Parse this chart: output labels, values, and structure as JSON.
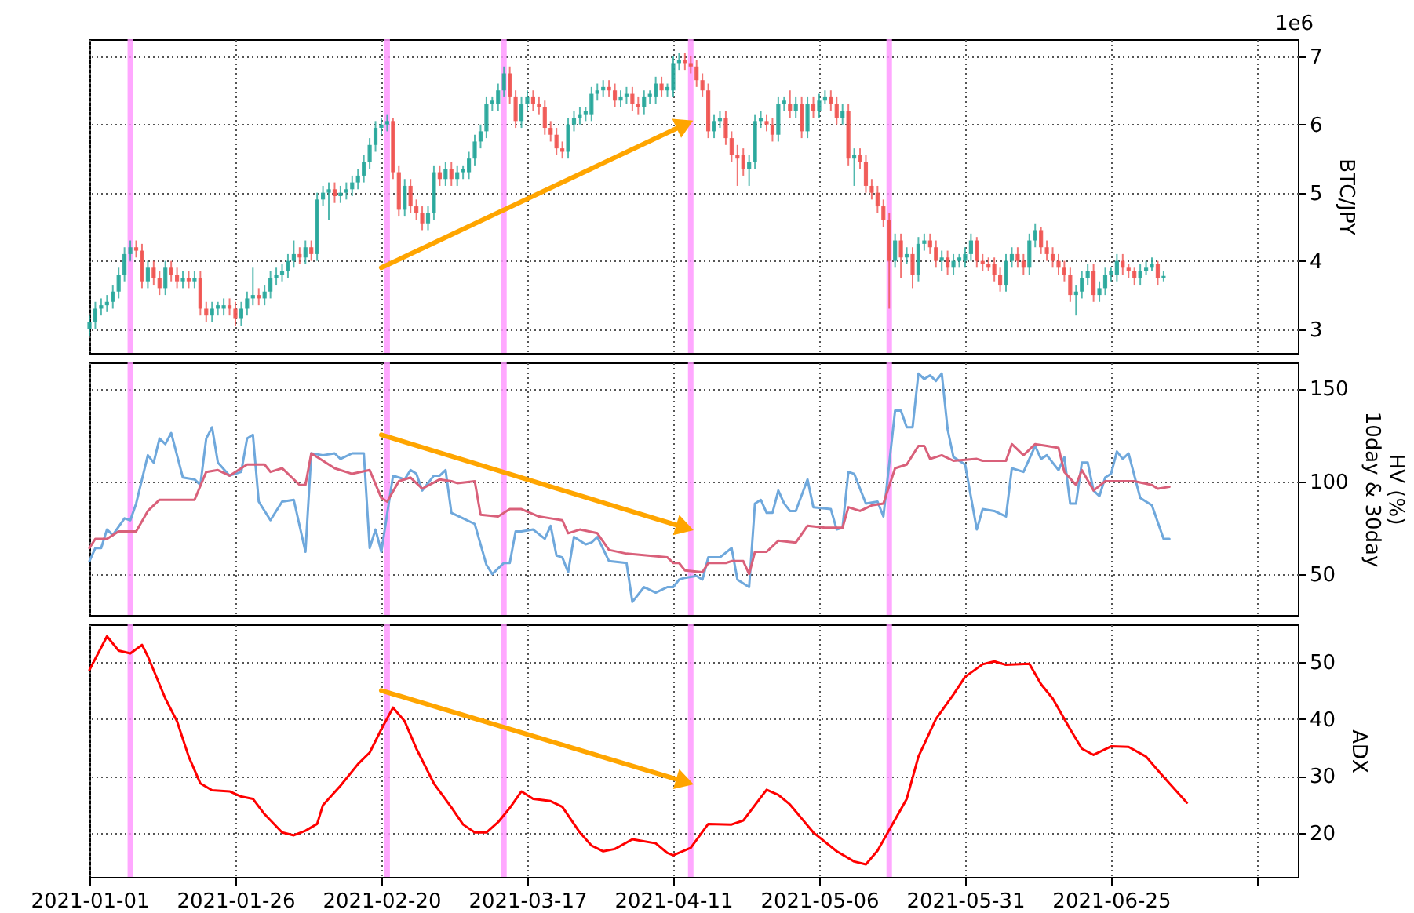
{
  "chart_data": [
    {
      "type": "candlestick",
      "ylabel": "BTC/JPY",
      "annotations": [
        "1e6"
      ],
      "xlim": [
        "2021-01-01",
        "2021-07-27"
      ],
      "xticks": [
        {
          "value": "2021-01-01",
          "label": null
        },
        {
          "value": "2021-01-26",
          "label": null
        },
        {
          "value": "2021-02-20",
          "label": null
        },
        {
          "value": "2021-03-17",
          "label": null
        },
        {
          "value": "2021-04-11",
          "label": null
        },
        {
          "value": "2021-05-06",
          "label": null
        },
        {
          "value": "2021-05-31",
          "label": null
        },
        {
          "value": "2021-06-25",
          "label": null
        },
        {
          "value": "2021-07-20",
          "label": null
        }
      ],
      "ylim": [
        2.65,
        7.25
      ],
      "yticks": [
        3,
        4,
        5,
        6,
        7
      ],
      "grid": true,
      "tick_labels": "y",
      "x": [
        "2021-01-01",
        "2021-01-02",
        "2021-01-03",
        "2021-01-04",
        "2021-01-05",
        "2021-01-06",
        "2021-01-07",
        "2021-01-08",
        "2021-01-09",
        "2021-01-10",
        "2021-01-11",
        "2021-01-12",
        "2021-01-13",
        "2021-01-14",
        "2021-01-15",
        "2021-01-16",
        "2021-01-17",
        "2021-01-18",
        "2021-01-19",
        "2021-01-20",
        "2021-01-21",
        "2021-01-22",
        "2021-01-23",
        "2021-01-24",
        "2021-01-25",
        "2021-01-26",
        "2021-01-27",
        "2021-01-28",
        "2021-01-29",
        "2021-01-30",
        "2021-01-31",
        "2021-02-01",
        "2021-02-02",
        "2021-02-03",
        "2021-02-04",
        "2021-02-05",
        "2021-02-06",
        "2021-02-07",
        "2021-02-08",
        "2021-02-09",
        "2021-02-10",
        "2021-02-11",
        "2021-02-12",
        "2021-02-13",
        "2021-02-14",
        "2021-02-15",
        "2021-02-16",
        "2021-02-17",
        "2021-02-18",
        "2021-02-19",
        "2021-02-20",
        "2021-02-21",
        "2021-02-22",
        "2021-02-23",
        "2021-02-24",
        "2021-02-25",
        "2021-02-26",
        "2021-02-27",
        "2021-02-28",
        "2021-03-01",
        "2021-03-02",
        "2021-03-03",
        "2021-03-04",
        "2021-03-05",
        "2021-03-06",
        "2021-03-07",
        "2021-03-08",
        "2021-03-09",
        "2021-03-10",
        "2021-03-11",
        "2021-03-12",
        "2021-03-13",
        "2021-03-14",
        "2021-03-15",
        "2021-03-16",
        "2021-03-17",
        "2021-03-18",
        "2021-03-19",
        "2021-03-20",
        "2021-03-21",
        "2021-03-22",
        "2021-03-23",
        "2021-03-24",
        "2021-03-25",
        "2021-03-26",
        "2021-03-27",
        "2021-03-28",
        "2021-03-29",
        "2021-03-30",
        "2021-03-31",
        "2021-04-01",
        "2021-04-02",
        "2021-04-03",
        "2021-04-04",
        "2021-04-05",
        "2021-04-06",
        "2021-04-07",
        "2021-04-08",
        "2021-04-09",
        "2021-04-10",
        "2021-04-11",
        "2021-04-12",
        "2021-04-13",
        "2021-04-14",
        "2021-04-15",
        "2021-04-16",
        "2021-04-17",
        "2021-04-18",
        "2021-04-19",
        "2021-04-20",
        "2021-04-21",
        "2021-04-22",
        "2021-04-23",
        "2021-04-24",
        "2021-04-25",
        "2021-04-26",
        "2021-04-27",
        "2021-04-28",
        "2021-04-29",
        "2021-04-30",
        "2021-05-01",
        "2021-05-02",
        "2021-05-03",
        "2021-05-04",
        "2021-05-05",
        "2021-05-06",
        "2021-05-07",
        "2021-05-08",
        "2021-05-09",
        "2021-05-10",
        "2021-05-11",
        "2021-05-12",
        "2021-05-13",
        "2021-05-14",
        "2021-05-15",
        "2021-05-16",
        "2021-05-17",
        "2021-05-18",
        "2021-05-19",
        "2021-05-20",
        "2021-05-21",
        "2021-05-22",
        "2021-05-23",
        "2021-05-24",
        "2021-05-25",
        "2021-05-26",
        "2021-05-27",
        "2021-05-28",
        "2021-05-29",
        "2021-05-30",
        "2021-05-31",
        "2021-06-01",
        "2021-06-02",
        "2021-06-03",
        "2021-06-04",
        "2021-06-05",
        "2021-06-06",
        "2021-06-07",
        "2021-06-08",
        "2021-06-09",
        "2021-06-10",
        "2021-06-11",
        "2021-06-12",
        "2021-06-13",
        "2021-06-14",
        "2021-06-15",
        "2021-06-16",
        "2021-06-17",
        "2021-06-18",
        "2021-06-19",
        "2021-06-20",
        "2021-06-21",
        "2021-06-22",
        "2021-06-23",
        "2021-06-24",
        "2021-06-25",
        "2021-06-26",
        "2021-06-27",
        "2021-06-28",
        "2021-06-29",
        "2021-06-30",
        "2021-07-01",
        "2021-07-02",
        "2021-07-03",
        "2021-07-04"
      ],
      "ohlc": [
        [
          3.0,
          3.2,
          2.9,
          3.1
        ],
        [
          3.1,
          3.4,
          3.0,
          3.3
        ],
        [
          3.3,
          3.45,
          3.2,
          3.35
        ],
        [
          3.35,
          3.5,
          3.25,
          3.4
        ],
        [
          3.4,
          3.65,
          3.3,
          3.55
        ],
        [
          3.55,
          3.9,
          3.45,
          3.8
        ],
        [
          3.8,
          4.2,
          3.7,
          4.1
        ],
        [
          4.1,
          4.3,
          4.0,
          4.2
        ],
        [
          4.2,
          4.3,
          4.05,
          4.15
        ],
        [
          4.15,
          4.25,
          3.6,
          3.7
        ],
        [
          3.7,
          4.0,
          3.6,
          3.9
        ],
        [
          3.9,
          4.0,
          3.65,
          3.75
        ],
        [
          3.75,
          3.85,
          3.5,
          3.6
        ],
        [
          3.6,
          4.0,
          3.5,
          3.9
        ],
        [
          3.9,
          4.0,
          3.7,
          3.8
        ],
        [
          3.8,
          3.9,
          3.6,
          3.7
        ],
        [
          3.7,
          3.85,
          3.6,
          3.75
        ],
        [
          3.75,
          3.85,
          3.6,
          3.7
        ],
        [
          3.7,
          3.85,
          3.6,
          3.75
        ],
        [
          3.75,
          3.85,
          3.2,
          3.3
        ],
        [
          3.3,
          3.4,
          3.1,
          3.2
        ],
        [
          3.2,
          3.4,
          3.1,
          3.3
        ],
        [
          3.3,
          3.4,
          3.2,
          3.35
        ],
        [
          3.3,
          3.45,
          3.2,
          3.35
        ],
        [
          3.35,
          3.45,
          3.2,
          3.3
        ],
        [
          3.3,
          3.4,
          3.05,
          3.15
        ],
        [
          3.15,
          3.4,
          3.05,
          3.3
        ],
        [
          3.3,
          3.55,
          3.2,
          3.45
        ],
        [
          3.45,
          3.9,
          3.35,
          3.5
        ],
        [
          3.5,
          3.6,
          3.35,
          3.45
        ],
        [
          3.45,
          3.65,
          3.35,
          3.55
        ],
        [
          3.55,
          3.85,
          3.45,
          3.75
        ],
        [
          3.75,
          3.9,
          3.65,
          3.8
        ],
        [
          3.8,
          3.95,
          3.7,
          3.85
        ],
        [
          3.85,
          4.1,
          3.75,
          4.0
        ],
        [
          4.0,
          4.3,
          3.9,
          4.1
        ],
        [
          4.1,
          4.2,
          3.95,
          4.05
        ],
        [
          4.05,
          4.3,
          3.95,
          4.2
        ],
        [
          4.2,
          4.3,
          4.0,
          4.1
        ],
        [
          4.1,
          5.0,
          4.0,
          4.9
        ],
        [
          4.9,
          5.1,
          4.8,
          5.0
        ],
        [
          5.0,
          5.15,
          4.6,
          5.05
        ],
        [
          5.05,
          5.15,
          4.85,
          4.95
        ],
        [
          4.95,
          5.1,
          4.85,
          5.0
        ],
        [
          5.0,
          5.15,
          4.9,
          5.05
        ],
        [
          5.05,
          5.25,
          4.95,
          5.15
        ],
        [
          5.15,
          5.35,
          5.05,
          5.25
        ],
        [
          5.25,
          5.55,
          5.15,
          5.45
        ],
        [
          5.45,
          5.8,
          5.35,
          5.7
        ],
        [
          5.7,
          6.05,
          5.6,
          5.95
        ],
        [
          5.95,
          6.1,
          5.85,
          6.0
        ],
        [
          6.0,
          6.15,
          5.9,
          6.05
        ],
        [
          6.05,
          6.1,
          5.2,
          5.3
        ],
        [
          5.3,
          5.4,
          4.65,
          4.75
        ],
        [
          4.75,
          5.2,
          4.65,
          5.1
        ],
        [
          5.1,
          5.2,
          4.7,
          4.8
        ],
        [
          4.8,
          4.9,
          4.6,
          4.7
        ],
        [
          4.7,
          4.8,
          4.45,
          4.55
        ],
        [
          4.55,
          4.8,
          4.45,
          4.7
        ],
        [
          4.7,
          5.4,
          4.6,
          5.3
        ],
        [
          5.3,
          5.4,
          5.1,
          5.2
        ],
        [
          5.2,
          5.45,
          5.1,
          5.35
        ],
        [
          5.35,
          5.45,
          5.1,
          5.2
        ],
        [
          5.2,
          5.4,
          5.1,
          5.3
        ],
        [
          5.3,
          5.4,
          5.2,
          5.35
        ],
        [
          5.3,
          5.6,
          5.2,
          5.5
        ],
        [
          5.5,
          5.85,
          5.4,
          5.75
        ],
        [
          5.75,
          6.0,
          5.65,
          5.9
        ],
        [
          5.9,
          6.4,
          5.8,
          6.3
        ],
        [
          6.3,
          6.4,
          6.2,
          6.35
        ],
        [
          6.3,
          6.6,
          6.2,
          6.5
        ],
        [
          6.5,
          6.85,
          6.4,
          6.75
        ],
        [
          6.75,
          6.85,
          6.3,
          6.4
        ],
        [
          6.4,
          6.5,
          5.95,
          6.05
        ],
        [
          6.05,
          6.4,
          5.95,
          6.3
        ],
        [
          6.3,
          6.5,
          6.2,
          6.4
        ],
        [
          6.4,
          6.5,
          6.2,
          6.3
        ],
        [
          6.3,
          6.4,
          6.15,
          6.25
        ],
        [
          6.25,
          6.35,
          5.85,
          5.95
        ],
        [
          5.95,
          6.05,
          5.75,
          5.85
        ],
        [
          5.85,
          5.95,
          5.55,
          5.65
        ],
        [
          5.65,
          5.75,
          5.5,
          5.6
        ],
        [
          5.6,
          6.1,
          5.5,
          6.0
        ],
        [
          6.0,
          6.2,
          5.9,
          6.1
        ],
        [
          6.1,
          6.25,
          6.0,
          6.15
        ],
        [
          6.15,
          6.25,
          6.05,
          6.2
        ],
        [
          6.15,
          6.55,
          6.05,
          6.45
        ],
        [
          6.45,
          6.6,
          6.35,
          6.5
        ],
        [
          6.5,
          6.65,
          6.4,
          6.55
        ],
        [
          6.55,
          6.65,
          6.4,
          6.5
        ],
        [
          6.5,
          6.6,
          6.25,
          6.35
        ],
        [
          6.35,
          6.5,
          6.25,
          6.4
        ],
        [
          6.4,
          6.55,
          6.3,
          6.45
        ],
        [
          6.45,
          6.55,
          6.2,
          6.3
        ],
        [
          6.3,
          6.4,
          6.15,
          6.25
        ],
        [
          6.25,
          6.5,
          6.15,
          6.4
        ],
        [
          6.4,
          6.5,
          6.3,
          6.45
        ],
        [
          6.4,
          6.7,
          6.3,
          6.6
        ],
        [
          6.6,
          6.7,
          6.4,
          6.5
        ],
        [
          6.5,
          6.6,
          6.4,
          6.55
        ],
        [
          6.5,
          7.0,
          6.4,
          6.9
        ],
        [
          6.9,
          7.05,
          6.8,
          6.95
        ],
        [
          6.95,
          7.05,
          6.8,
          6.9
        ],
        [
          6.9,
          7.0,
          6.75,
          6.85
        ],
        [
          6.85,
          6.95,
          6.55,
          6.65
        ],
        [
          6.65,
          6.75,
          6.4,
          6.5
        ],
        [
          6.5,
          6.6,
          5.8,
          5.9
        ],
        [
          5.9,
          6.15,
          5.8,
          6.05
        ],
        [
          6.05,
          6.2,
          5.95,
          6.1
        ],
        [
          6.1,
          6.2,
          5.7,
          5.8
        ],
        [
          5.8,
          5.9,
          5.45,
          5.55
        ],
        [
          5.55,
          5.7,
          5.1,
          5.5
        ],
        [
          5.55,
          5.65,
          5.25,
          5.35
        ],
        [
          5.35,
          5.55,
          5.1,
          5.45
        ],
        [
          5.45,
          6.15,
          5.35,
          6.05
        ],
        [
          6.05,
          6.2,
          5.95,
          6.1
        ],
        [
          6.05,
          6.15,
          5.9,
          6.0
        ],
        [
          6.0,
          6.1,
          5.75,
          5.85
        ],
        [
          5.85,
          6.4,
          5.75,
          6.3
        ],
        [
          6.3,
          6.4,
          6.2,
          6.35
        ],
        [
          6.3,
          6.5,
          6.1,
          6.2
        ],
        [
          6.2,
          6.4,
          6.1,
          6.3
        ],
        [
          6.3,
          6.4,
          5.8,
          5.9
        ],
        [
          5.9,
          6.4,
          5.8,
          6.3
        ],
        [
          6.3,
          6.4,
          6.1,
          6.2
        ],
        [
          6.2,
          6.45,
          6.1,
          6.35
        ],
        [
          6.35,
          6.5,
          6.3,
          6.4
        ],
        [
          6.4,
          6.5,
          6.2,
          6.3
        ],
        [
          6.3,
          6.4,
          6.0,
          6.1
        ],
        [
          6.1,
          6.3,
          6.0,
          6.2
        ],
        [
          6.2,
          6.3,
          5.4,
          5.5
        ],
        [
          5.5,
          5.65,
          5.1,
          5.55
        ],
        [
          5.55,
          5.65,
          5.35,
          5.45
        ],
        [
          5.45,
          5.55,
          5.0,
          5.1
        ],
        [
          5.1,
          5.2,
          4.9,
          5.0
        ],
        [
          5.0,
          5.1,
          4.7,
          4.8
        ],
        [
          4.8,
          4.9,
          4.5,
          4.6
        ],
        [
          4.6,
          4.7,
          3.3,
          4.0
        ],
        [
          4.0,
          4.4,
          3.9,
          4.3
        ],
        [
          4.3,
          4.4,
          3.75,
          4.05
        ],
        [
          4.05,
          4.2,
          3.95,
          4.1
        ],
        [
          4.1,
          4.2,
          3.6,
          3.8
        ],
        [
          3.8,
          4.35,
          3.7,
          4.25
        ],
        [
          4.25,
          4.4,
          4.15,
          4.3
        ],
        [
          4.3,
          4.4,
          4.1,
          4.2
        ],
        [
          4.2,
          4.3,
          3.9,
          4.0
        ],
        [
          4.0,
          4.15,
          3.85,
          4.05
        ],
        [
          4.05,
          4.15,
          3.8,
          3.9
        ],
        [
          3.9,
          4.1,
          3.8,
          4.0
        ],
        [
          4.0,
          4.1,
          3.9,
          4.05
        ],
        [
          4.0,
          4.2,
          3.9,
          4.1
        ],
        [
          4.1,
          4.4,
          4.0,
          4.3
        ],
        [
          4.3,
          4.35,
          3.9,
          4.0
        ],
        [
          4.0,
          4.1,
          3.85,
          3.95
        ],
        [
          3.95,
          4.05,
          3.85,
          3.9
        ],
        [
          3.95,
          4.05,
          3.7,
          3.8
        ],
        [
          3.8,
          3.9,
          3.55,
          3.65
        ],
        [
          3.65,
          4.1,
          3.55,
          4.0
        ],
        [
          4.0,
          4.2,
          3.9,
          4.1
        ],
        [
          4.1,
          4.2,
          3.9,
          4.0
        ],
        [
          4.0,
          4.1,
          3.8,
          3.9
        ],
        [
          3.9,
          4.4,
          3.8,
          4.3
        ],
        [
          4.3,
          4.55,
          4.2,
          4.45
        ],
        [
          4.45,
          4.5,
          4.1,
          4.2
        ],
        [
          4.2,
          4.3,
          4.0,
          4.1
        ],
        [
          4.1,
          4.2,
          3.9,
          4.0
        ],
        [
          4.0,
          4.1,
          3.8,
          3.9
        ],
        [
          3.9,
          4.0,
          3.7,
          3.8
        ],
        [
          3.8,
          3.9,
          3.4,
          3.5
        ],
        [
          3.5,
          3.65,
          3.2,
          3.55
        ],
        [
          3.55,
          3.85,
          3.45,
          3.75
        ],
        [
          3.75,
          3.95,
          3.65,
          3.85
        ],
        [
          3.85,
          3.95,
          3.4,
          3.5
        ],
        [
          3.5,
          3.7,
          3.4,
          3.6
        ],
        [
          3.6,
          3.9,
          3.5,
          3.8
        ],
        [
          3.8,
          3.9,
          3.7,
          3.85
        ],
        [
          3.8,
          4.1,
          3.7,
          4.0
        ],
        [
          4.0,
          4.1,
          3.8,
          3.9
        ],
        [
          3.9,
          3.95,
          3.75,
          3.85
        ],
        [
          3.85,
          3.9,
          3.65,
          3.75
        ],
        [
          3.75,
          3.95,
          3.65,
          3.85
        ],
        [
          3.85,
          4.0,
          3.8,
          3.9
        ],
        [
          3.9,
          4.05,
          3.85,
          3.95
        ],
        [
          3.95,
          4.0,
          3.65,
          3.75
        ],
        [
          3.75,
          3.85,
          3.7,
          3.78
        ]
      ],
      "series": [
        {
          "type": "line",
          "color": "#ffa500",
          "marker": "triangle",
          "x": [
            "2021-02-20",
            "2021-04-13"
          ],
          "values": [
            3.9,
            6.0
          ]
        }
      ],
      "ref_lines": [
        {
          "axis": "x",
          "value": "2021-01-08",
          "color": "#ff99ff"
        },
        {
          "axis": "x",
          "value": "2021-02-21",
          "color": "#ff99ff"
        },
        {
          "axis": "x",
          "value": "2021-03-13",
          "color": "#ff99ff"
        },
        {
          "axis": "x",
          "value": "2021-04-14",
          "color": "#ff99ff"
        },
        {
          "axis": "x",
          "value": "2021-05-18",
          "color": "#ff99ff"
        }
      ]
    },
    {
      "type": "line",
      "ylabel": "HV (%)\n10day & 30day",
      "xlim": [
        "2021-01-01",
        "2021-07-27"
      ],
      "xticks": [
        {
          "value": "2021-01-01",
          "label": null
        },
        {
          "value": "2021-01-26",
          "label": null
        },
        {
          "value": "2021-02-20",
          "label": null
        },
        {
          "value": "2021-03-17",
          "label": null
        },
        {
          "value": "2021-04-11",
          "label": null
        },
        {
          "value": "2021-05-06",
          "label": null
        },
        {
          "value": "2021-05-31",
          "label": null
        },
        {
          "value": "2021-06-25",
          "label": null
        },
        {
          "value": "2021-07-20",
          "label": null
        }
      ],
      "ylim": [
        28,
        164
      ],
      "yticks": [
        50,
        100,
        150
      ],
      "grid": true,
      "tick_labels": "y",
      "series": [
        {
          "color": "#6fa8dc",
          "x": [
            "2021-01-01",
            "2021-01-02",
            "2021-01-03",
            "2021-01-04",
            "2021-01-05",
            "2021-01-07",
            "2021-01-08",
            "2021-01-09",
            "2021-01-11",
            "2021-01-12",
            "2021-01-13",
            "2021-01-14",
            "2021-01-15",
            "2021-01-17",
            "2021-01-19",
            "2021-01-20",
            "2021-01-21",
            "2021-01-22",
            "2021-01-23",
            "2021-01-25",
            "2021-01-27",
            "2021-01-28",
            "2021-01-29",
            "2021-01-30",
            "2021-02-01",
            "2021-02-03",
            "2021-02-05",
            "2021-02-07",
            "2021-02-08",
            "2021-02-10",
            "2021-02-12",
            "2021-02-13",
            "2021-02-15",
            "2021-02-17",
            "2021-02-18",
            "2021-02-19",
            "2021-02-20",
            "2021-02-22",
            "2021-02-24",
            "2021-02-25",
            "2021-02-26",
            "2021-02-27",
            "2021-03-01",
            "2021-03-02",
            "2021-03-03",
            "2021-03-04",
            "2021-03-06",
            "2021-03-08",
            "2021-03-10",
            "2021-03-11",
            "2021-03-13",
            "2021-03-14",
            "2021-03-15",
            "2021-03-16",
            "2021-03-18",
            "2021-03-20",
            "2021-03-21",
            "2021-03-22",
            "2021-03-23",
            "2021-03-24",
            "2021-03-25",
            "2021-03-27",
            "2021-03-28",
            "2021-03-29",
            "2021-03-31",
            "2021-04-03",
            "2021-04-04",
            "2021-04-06",
            "2021-04-08",
            "2021-04-10",
            "2021-04-11",
            "2021-04-12",
            "2021-04-13",
            "2021-04-15",
            "2021-04-16",
            "2021-04-17",
            "2021-04-19",
            "2021-04-21",
            "2021-04-22",
            "2021-04-24",
            "2021-04-25",
            "2021-04-26",
            "2021-04-27",
            "2021-04-28",
            "2021-04-29",
            "2021-04-30",
            "2021-05-01",
            "2021-05-02",
            "2021-05-04",
            "2021-05-05",
            "2021-05-08",
            "2021-05-09",
            "2021-05-10",
            "2021-05-11",
            "2021-05-12",
            "2021-05-14",
            "2021-05-16",
            "2021-05-17",
            "2021-05-19",
            "2021-05-20",
            "2021-05-21",
            "2021-05-22",
            "2021-05-23",
            "2021-05-24",
            "2021-05-25",
            "2021-05-26",
            "2021-05-27",
            "2021-05-28",
            "2021-05-29",
            "2021-05-31",
            "2021-06-02",
            "2021-06-03",
            "2021-06-05",
            "2021-06-07",
            "2021-06-08",
            "2021-06-10",
            "2021-06-12",
            "2021-06-13",
            "2021-06-14",
            "2021-06-15",
            "2021-06-16",
            "2021-06-17",
            "2021-06-18",
            "2021-06-19",
            "2021-06-20",
            "2021-06-21",
            "2021-06-22",
            "2021-06-23",
            "2021-06-24",
            "2021-06-25",
            "2021-06-26",
            "2021-06-27",
            "2021-06-28",
            "2021-06-30",
            "2021-07-02",
            "2021-07-04",
            "2021-07-05"
          ],
          "values": [
            57,
            64,
            64,
            74,
            71,
            80,
            79,
            88,
            114,
            110,
            123,
            120,
            126,
            102,
            101,
            98,
            123,
            129,
            110,
            103,
            105,
            123,
            125,
            89,
            79,
            89,
            90,
            62,
            115,
            114,
            115,
            112,
            115,
            115,
            64,
            74,
            62,
            103,
            101,
            106,
            104,
            95,
            103,
            103,
            106,
            83,
            80,
            77,
            55,
            50,
            56,
            56,
            73,
            73,
            74,
            69,
            76,
            60,
            59,
            51,
            70,
            66,
            67,
            70,
            57,
            56,
            35,
            43,
            40,
            43,
            43,
            47,
            48,
            49,
            47,
            59,
            59,
            64,
            47,
            43,
            88,
            90,
            83,
            83,
            95,
            88,
            84,
            84,
            101,
            86,
            85,
            74,
            75,
            105,
            104,
            88,
            89,
            81,
            138,
            138,
            129,
            129,
            158,
            155,
            157,
            154,
            158,
            128,
            113,
            109,
            74,
            85,
            84,
            81,
            107,
            105,
            119,
            112,
            114,
            110,
            106,
            113,
            88,
            88,
            110,
            110,
            95,
            92,
            102,
            104,
            116,
            112,
            115,
            91,
            87,
            69,
            69
          ]
        },
        {
          "color": "#d9607a",
          "x": [
            "2021-01-01",
            "2021-01-02",
            "2021-01-04",
            "2021-01-06",
            "2021-01-09",
            "2021-01-11",
            "2021-01-13",
            "2021-01-19",
            "2021-01-21",
            "2021-01-23",
            "2021-01-25",
            "2021-01-28",
            "2021-01-31",
            "2021-02-01",
            "2021-02-03",
            "2021-02-06",
            "2021-02-07",
            "2021-02-08",
            "2021-02-09",
            "2021-02-12",
            "2021-02-15",
            "2021-02-18",
            "2021-02-20",
            "2021-02-21",
            "2021-02-23",
            "2021-02-25",
            "2021-02-27",
            "2021-03-02",
            "2021-03-04",
            "2021-03-05",
            "2021-03-08",
            "2021-03-09",
            "2021-03-12",
            "2021-03-14",
            "2021-03-16",
            "2021-03-19",
            "2021-03-21",
            "2021-03-23",
            "2021-03-24",
            "2021-03-26",
            "2021-03-29",
            "2021-03-31",
            "2021-04-03",
            "2021-04-10",
            "2021-04-11",
            "2021-04-12",
            "2021-04-13",
            "2021-04-16",
            "2021-04-17",
            "2021-04-20",
            "2021-04-21",
            "2021-04-23",
            "2021-04-24",
            "2021-04-25",
            "2021-04-27",
            "2021-04-29",
            "2021-05-02",
            "2021-05-04",
            "2021-05-07",
            "2021-05-10",
            "2021-05-11",
            "2021-05-13",
            "2021-05-15",
            "2021-05-17",
            "2021-05-19",
            "2021-05-21",
            "2021-05-23",
            "2021-05-24",
            "2021-05-25",
            "2021-05-27",
            "2021-05-29",
            "2021-06-02",
            "2021-06-03",
            "2021-06-07",
            "2021-06-08",
            "2021-06-10",
            "2021-06-12",
            "2021-06-14",
            "2021-06-16",
            "2021-06-17",
            "2021-06-19",
            "2021-06-20",
            "2021-06-22",
            "2021-06-24",
            "2021-06-29",
            "2021-07-02",
            "2021-07-03",
            "2021-07-05"
          ],
          "values": [
            64,
            69,
            69,
            73,
            73,
            84,
            90,
            90,
            105,
            106,
            103,
            109,
            109,
            105,
            107,
            98,
            98,
            115,
            113,
            107,
            104,
            106,
            91,
            89,
            100,
            102,
            96,
            101,
            100,
            99,
            100,
            82,
            81,
            85,
            85,
            81,
            80,
            79,
            72,
            74,
            72,
            63,
            61,
            59,
            56,
            56,
            52,
            51,
            56,
            56,
            57,
            57,
            50,
            62,
            62,
            68,
            67,
            76,
            75,
            75,
            86,
            84,
            87,
            88,
            107,
            109,
            119,
            119,
            112,
            114,
            111,
            112,
            111,
            111,
            120,
            114,
            120,
            119,
            118,
            105,
            98,
            106,
            95,
            100,
            100,
            98,
            96,
            97
          ]
        },
        {
          "type": "line",
          "color": "#ffa500",
          "marker": "triangle",
          "x": [
            "2021-02-20",
            "2021-04-13"
          ],
          "values": [
            125,
            75
          ]
        }
      ],
      "ref_lines": [
        {
          "axis": "x",
          "value": "2021-01-08",
          "color": "#ff99ff"
        },
        {
          "axis": "x",
          "value": "2021-02-21",
          "color": "#ff99ff"
        },
        {
          "axis": "x",
          "value": "2021-03-13",
          "color": "#ff99ff"
        },
        {
          "axis": "x",
          "value": "2021-04-14",
          "color": "#ff99ff"
        },
        {
          "axis": "x",
          "value": "2021-05-18",
          "color": "#ff99ff"
        }
      ]
    },
    {
      "type": "line",
      "ylabel": "ADX",
      "xlim": [
        "2021-01-01",
        "2021-07-27"
      ],
      "xticks": [
        {
          "value": "2021-01-01",
          "label": "2021-01-01"
        },
        {
          "value": "2021-01-26",
          "label": "2021-01-26"
        },
        {
          "value": "2021-02-20",
          "label": "2021-02-20"
        },
        {
          "value": "2021-03-17",
          "label": "2021-03-17"
        },
        {
          "value": "2021-04-11",
          "label": "2021-04-11"
        },
        {
          "value": "2021-05-06",
          "label": "2021-05-06"
        },
        {
          "value": "2021-05-31",
          "label": "2021-05-31"
        },
        {
          "value": "2021-06-25",
          "label": "2021-06-25"
        },
        {
          "value": "2021-07-20",
          "label": null
        }
      ],
      "ylim": [
        12.3,
        56.6
      ],
      "yticks": [
        20,
        30,
        40,
        50
      ],
      "grid": true,
      "series": [
        {
          "color": "#ff0000",
          "x": [
            "2021-01-01",
            "2021-01-04",
            "2021-01-06",
            "2021-01-08",
            "2021-01-10",
            "2021-01-11",
            "2021-01-14",
            "2021-01-16",
            "2021-01-18",
            "2021-01-20",
            "2021-01-22",
            "2021-01-25",
            "2021-01-27",
            "2021-01-29",
            "2021-01-31",
            "2021-02-03",
            "2021-02-05",
            "2021-02-07",
            "2021-02-09",
            "2021-02-10",
            "2021-02-13",
            "2021-02-16",
            "2021-02-18",
            "2021-02-20",
            "2021-02-22",
            "2021-02-24",
            "2021-02-26",
            "2021-03-01",
            "2021-03-04",
            "2021-03-06",
            "2021-03-08",
            "2021-03-10",
            "2021-03-12",
            "2021-03-14",
            "2021-03-16",
            "2021-03-18",
            "2021-03-21",
            "2021-03-23",
            "2021-03-26",
            "2021-03-28",
            "2021-03-30",
            "2021-04-01",
            "2021-04-04",
            "2021-04-08",
            "2021-04-10",
            "2021-04-11",
            "2021-04-14",
            "2021-04-17",
            "2021-04-21",
            "2021-04-23",
            "2021-04-27",
            "2021-04-29",
            "2021-05-01",
            "2021-05-05",
            "2021-05-09",
            "2021-05-12",
            "2021-05-14",
            "2021-05-16",
            "2021-05-21",
            "2021-05-23",
            "2021-05-26",
            "2021-05-29",
            "2021-05-31",
            "2021-06-03",
            "2021-06-05",
            "2021-06-07",
            "2021-06-11",
            "2021-06-13",
            "2021-06-15",
            "2021-06-18",
            "2021-06-20",
            "2021-06-22",
            "2021-06-25",
            "2021-06-28",
            "2021-07-01",
            "2021-07-03",
            "2021-07-05",
            "2021-07-08"
          ],
          "values": [
            48.6,
            54.5,
            52,
            51.5,
            53,
            51,
            43.6,
            39.6,
            33.4,
            28.7,
            27.5,
            27.3,
            26.4,
            26,
            23.3,
            20.1,
            19.6,
            20.4,
            21.6,
            24.9,
            28.3,
            32.1,
            34.1,
            38.2,
            42,
            39.6,
            34.8,
            28.7,
            24.5,
            21.5,
            20.1,
            20.1,
            21.9,
            24.4,
            27.3,
            26,
            25.6,
            24.6,
            20.1,
            17.8,
            16.8,
            17.2,
            18.9,
            18.2,
            16.5,
            16.1,
            17.4,
            21.6,
            21.5,
            22.2,
            27.6,
            26.7,
            25,
            20.1,
            16.8,
            15,
            14.5,
            16.9,
            26,
            33.4,
            40,
            44.3,
            47.4,
            49.6,
            50.1,
            49.5,
            49.7,
            46.1,
            43.6,
            38.2,
            34.8,
            33.7,
            35.2,
            35.1,
            33.4,
            31,
            28.7,
            25.3
          ]
        },
        {
          "type": "line",
          "color": "#ffa500",
          "marker": "triangle",
          "x": [
            "2021-02-20",
            "2021-04-13"
          ],
          "values": [
            45,
            29
          ]
        }
      ],
      "ref_lines": [
        {
          "axis": "x",
          "value": "2021-01-08",
          "color": "#ff99ff"
        },
        {
          "axis": "x",
          "value": "2021-02-21",
          "color": "#ff99ff"
        },
        {
          "axis": "x",
          "value": "2021-03-13",
          "color": "#ff99ff"
        },
        {
          "axis": "x",
          "value": "2021-04-14",
          "color": "#ff99ff"
        },
        {
          "axis": "x",
          "value": "2021-05-18",
          "color": "#ff99ff"
        }
      ]
    }
  ]
}
